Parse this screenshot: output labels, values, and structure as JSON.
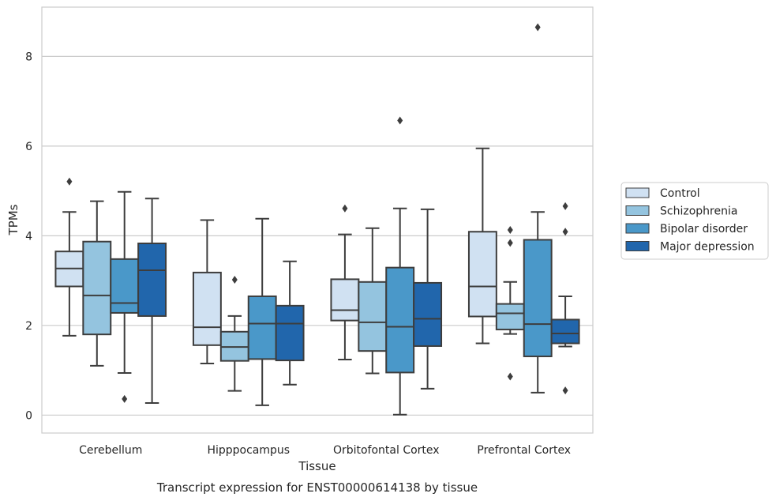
{
  "chart_data": {
    "type": "box",
    "title": "Transcript expression for ENST00000614138 by tissue",
    "xlabel": "Tissue",
    "ylabel": "TPMs",
    "ylim": [
      -0.4,
      9.1
    ],
    "yticks": [
      "0",
      "2",
      "4",
      "6",
      "8"
    ],
    "categories": [
      "Cerebellum",
      "Hipppocampus",
      "Orbitofontal Cortex",
      "Prefrontal Cortex"
    ],
    "grid": "horizontal",
    "legend_position": "right",
    "series": [
      {
        "name": "Control",
        "color": "#d0e1f2",
        "boxes": [
          {
            "min": 1.77,
            "q1": 2.87,
            "median": 3.27,
            "q3": 3.65,
            "max": 4.53,
            "outliers": [
              5.21
            ]
          },
          {
            "min": 1.15,
            "q1": 1.56,
            "median": 1.96,
            "q3": 3.18,
            "max": 4.35,
            "outliers": []
          },
          {
            "min": 1.24,
            "q1": 2.11,
            "median": 2.34,
            "q3": 3.03,
            "max": 4.03,
            "outliers": [
              4.61
            ]
          },
          {
            "min": 1.6,
            "q1": 2.2,
            "median": 2.87,
            "q3": 4.09,
            "max": 5.95,
            "outliers": []
          }
        ]
      },
      {
        "name": "Schizophrenia",
        "color": "#94c4df",
        "boxes": [
          {
            "min": 1.1,
            "q1": 1.8,
            "median": 2.67,
            "q3": 3.87,
            "max": 4.77,
            "outliers": []
          },
          {
            "min": 0.54,
            "q1": 1.21,
            "median": 1.52,
            "q3": 1.86,
            "max": 2.21,
            "outliers": [
              3.02
            ]
          },
          {
            "min": 0.93,
            "q1": 1.43,
            "median": 2.07,
            "q3": 2.97,
            "max": 4.17,
            "outliers": []
          },
          {
            "min": 1.81,
            "q1": 1.91,
            "median": 2.27,
            "q3": 2.48,
            "max": 2.97,
            "outliers": [
              0.86,
              3.84,
              4.13
            ]
          }
        ]
      },
      {
        "name": "Bipolar disorder",
        "color": "#4a98c9",
        "boxes": [
          {
            "min": 0.94,
            "q1": 2.28,
            "median": 2.5,
            "q3": 3.48,
            "max": 4.98,
            "outliers": [
              0.36
            ]
          },
          {
            "min": 0.22,
            "q1": 1.25,
            "median": 2.04,
            "q3": 2.65,
            "max": 4.38,
            "outliers": []
          },
          {
            "min": 0.01,
            "q1": 0.95,
            "median": 1.97,
            "q3": 3.29,
            "max": 4.61,
            "outliers": [
              6.57
            ]
          },
          {
            "min": 0.5,
            "q1": 1.31,
            "median": 2.03,
            "q3": 3.91,
            "max": 4.53,
            "outliers": [
              8.65
            ]
          }
        ]
      },
      {
        "name": "Major depression",
        "color": "#2166ac",
        "boxes": [
          {
            "min": 0.27,
            "q1": 2.21,
            "median": 3.23,
            "q3": 3.83,
            "max": 4.83,
            "outliers": []
          },
          {
            "min": 0.68,
            "q1": 1.22,
            "median": 2.04,
            "q3": 2.44,
            "max": 3.43,
            "outliers": []
          },
          {
            "min": 0.59,
            "q1": 1.54,
            "median": 2.15,
            "q3": 2.95,
            "max": 4.59,
            "outliers": []
          },
          {
            "min": 1.53,
            "q1": 1.6,
            "median": 1.82,
            "q3": 2.13,
            "max": 2.65,
            "outliers": [
              0.55,
              4.09,
              4.66
            ]
          }
        ]
      }
    ]
  }
}
